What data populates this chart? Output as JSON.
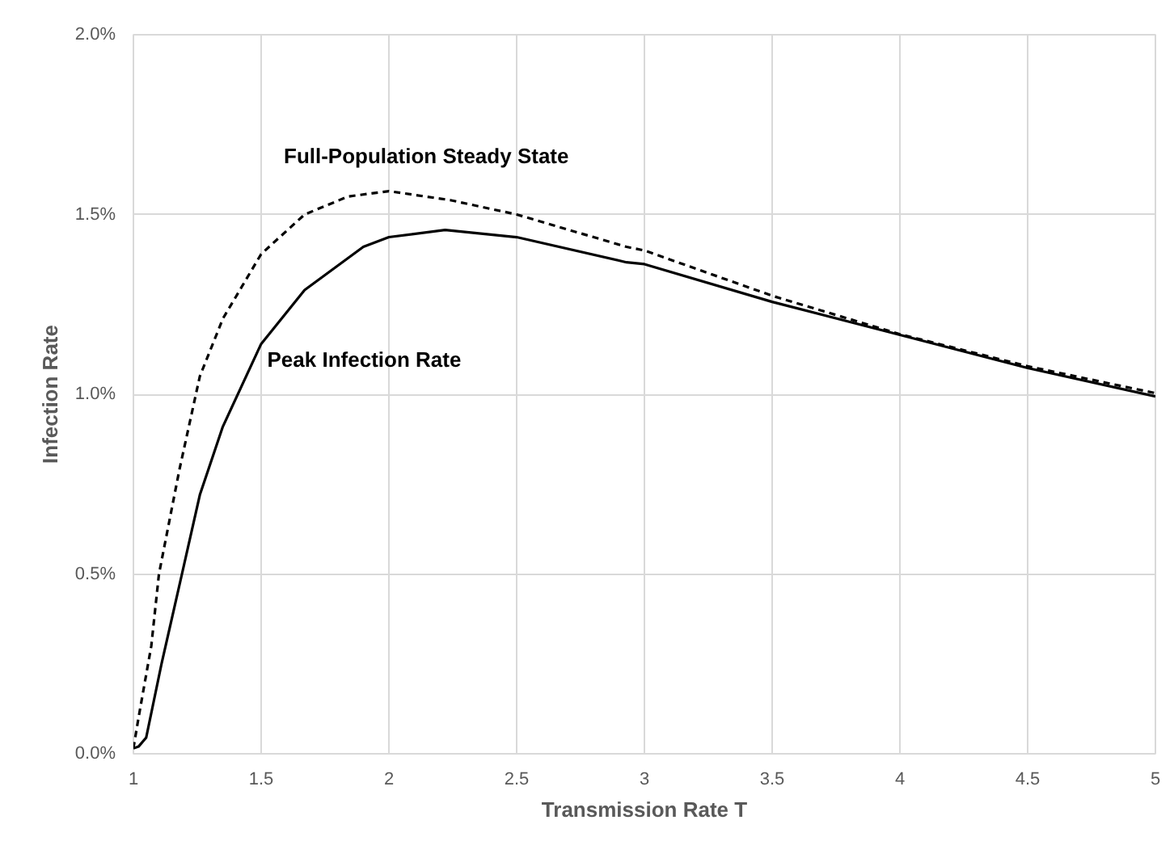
{
  "chart_data": {
    "type": "line",
    "xlabel": "Transmission Rate T",
    "ylabel": "Infection Rate",
    "xlim": [
      1,
      5
    ],
    "ylim": [
      0,
      2
    ],
    "xticks": [
      1,
      1.5,
      2,
      2.5,
      3,
      3.5,
      4,
      4.5,
      5
    ],
    "yticks": [
      {
        "value": 0,
        "label": "0.0%"
      },
      {
        "value": 0.5,
        "label": "0.5%"
      },
      {
        "value": 1,
        "label": "1.0%"
      },
      {
        "value": 1.5,
        "label": "1.5%"
      },
      {
        "value": 2,
        "label": "2.0%"
      }
    ],
    "grid": true,
    "series": [
      {
        "name": "Full-Population Steady State",
        "color": "#000000",
        "line_style": "dashed",
        "x": [
          1,
          1.02,
          1.07,
          1.1,
          1.18,
          1.26,
          1.35,
          1.5,
          1.67,
          1.84,
          2,
          2.24,
          2.5,
          2.93,
          3,
          3.5,
          4,
          4.5,
          5
        ],
        "values": [
          0.015,
          0.1,
          0.3,
          0.5,
          0.79,
          1.05,
          1.21,
          1.39,
          1.5,
          1.55,
          1.565,
          1.54,
          1.5,
          1.41,
          1.4,
          1.274,
          1.167,
          1.078,
          1.003
        ]
      },
      {
        "name": "Peak Infection Rate",
        "color": "#000000",
        "line_style": "solid",
        "x": [
          1,
          1.02,
          1.05,
          1.11,
          1.19,
          1.26,
          1.35,
          1.5,
          1.67,
          1.9,
          2,
          2.22,
          2.5,
          2.93,
          3,
          3.5,
          4,
          4.5,
          5
        ],
        "values": [
          0.015,
          0.02,
          0.045,
          0.25,
          0.5,
          0.72,
          0.91,
          1.14,
          1.29,
          1.41,
          1.437,
          1.457,
          1.437,
          1.367,
          1.362,
          1.257,
          1.165,
          1.073,
          0.994
        ]
      }
    ]
  }
}
